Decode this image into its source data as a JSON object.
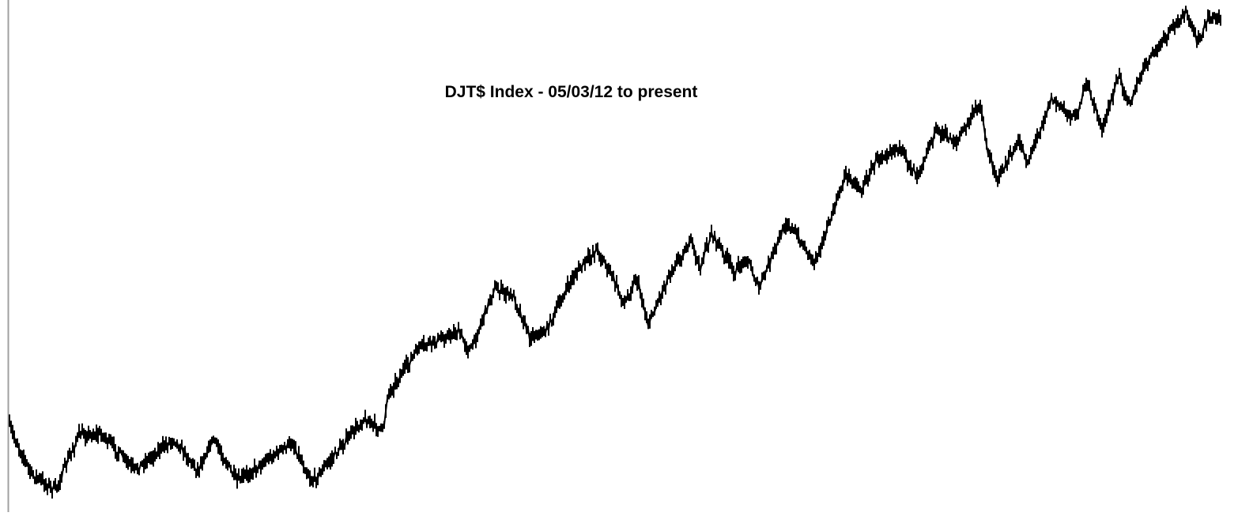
{
  "chart_data": {
    "type": "ohlc",
    "title": "DJT$ Index - 05/03/12 to present",
    "xlabel": "",
    "ylabel": "",
    "grid": false,
    "legend": "none",
    "line_color": "#000000",
    "axis_color": "#a0a0a0",
    "note_values": "approximate relative index levels; no axis scale printed",
    "x": [
      0,
      28,
      58,
      88,
      118,
      158,
      208,
      238,
      258,
      288,
      328,
      358,
      383,
      408,
      448,
      473,
      478,
      518,
      568,
      583,
      613,
      638,
      658,
      678,
      713,
      743,
      763,
      778,
      793,
      808,
      838,
      863,
      873,
      888,
      918,
      933,
      948,
      983,
      1018,
      1033,
      1058,
      1078,
      1098,
      1123,
      1148,
      1173,
      1198,
      1228,
      1238,
      1250,
      1278,
      1288,
      1303,
      1318,
      1348,
      1363,
      1383,
      1403,
      1418,
      1438,
      1468,
      1488,
      1503,
      1518,
      1533
    ],
    "values": [
      16.7,
      6.7,
      3.3,
      15,
      15,
      7.5,
      14.2,
      7.5,
      14.2,
      5,
      10,
      13.3,
      5,
      10,
      18.3,
      15.8,
      23.3,
      33.3,
      36.7,
      32.5,
      45.8,
      44.2,
      35.8,
      36.7,
      48.3,
      54.2,
      48.3,
      42.5,
      48.3,
      38.3,
      50,
      55.8,
      50,
      57.5,
      49.2,
      52.5,
      45.8,
      60,
      51.7,
      57.5,
      70,
      66.7,
      73.3,
      75.8,
      70,
      79.2,
      76.7,
      85,
      74.2,
      69.2,
      76.7,
      72.5,
      79.2,
      85.8,
      81.7,
      89.2,
      79.2,
      90.8,
      85,
      93.3,
      100,
      104.2,
      97.5,
      103.3,
      102.5
    ]
  }
}
